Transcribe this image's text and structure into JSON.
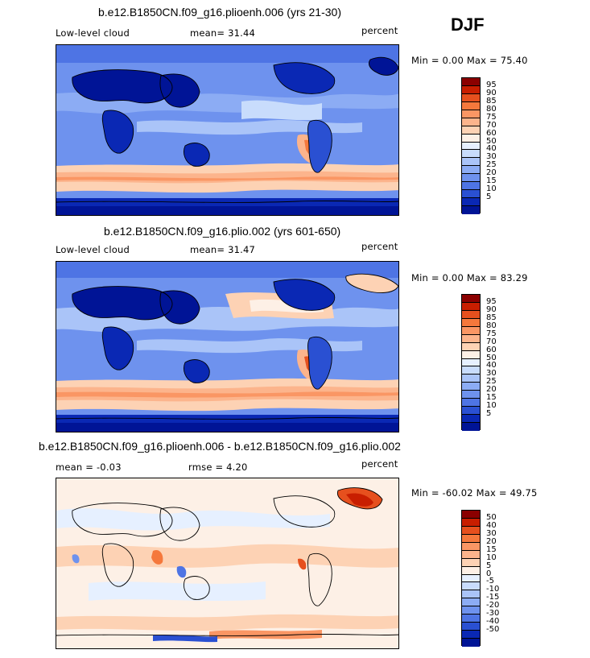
{
  "season": "DJF",
  "panels": [
    {
      "title": "b.e12.B1850CN.f09_g16.plioenh.006 (yrs 21-30)",
      "left_label": "Low-level cloud",
      "stat_text": "mean=  31.44",
      "units": "percent",
      "minmax": "Min =   0.00 Max =  75.40",
      "colorbar": {
        "colors": [
          "#8b0000",
          "#c81e00",
          "#e6501e",
          "#f5783c",
          "#fa9664",
          "#fcb48c",
          "#fdd2b4",
          "#fdf0e6",
          "#e6f0ff",
          "#c8dcfc",
          "#aac4f8",
          "#8cacf4",
          "#6e92ee",
          "#4e74e4",
          "#2a50d2",
          "#0a28b4",
          "#001496"
        ],
        "labels": [
          "95",
          "90",
          "85",
          "80",
          "75",
          "70",
          "60",
          "50",
          "40",
          "30",
          "25",
          "20",
          "15",
          "10",
          "5"
        ]
      }
    },
    {
      "title": "b.e12.B1850CN.f09_g16.plio.002 (yrs 601-650)",
      "left_label": "Low-level cloud",
      "stat_text": "mean=  31.47",
      "units": "percent",
      "minmax": "Min =   0.00 Max =  83.29",
      "colorbar": {
        "colors": [
          "#8b0000",
          "#c81e00",
          "#e6501e",
          "#f5783c",
          "#fa9664",
          "#fcb48c",
          "#fdd2b4",
          "#fdf0e6",
          "#e6f0ff",
          "#c8dcfc",
          "#aac4f8",
          "#8cacf4",
          "#6e92ee",
          "#4e74e4",
          "#2a50d2",
          "#0a28b4",
          "#001496"
        ],
        "labels": [
          "95",
          "90",
          "85",
          "80",
          "75",
          "70",
          "60",
          "50",
          "40",
          "30",
          "25",
          "20",
          "15",
          "10",
          "5"
        ]
      }
    },
    {
      "title": "b.e12.B1850CN.f09_g16.plioenh.006 - b.e12.B1850CN.f09_g16.plio.002",
      "left_label": "mean =  -0.03",
      "stat_text": "rmse =   4.20",
      "units": "percent",
      "minmax": "Min = -60.02 Max =  49.75",
      "colorbar": {
        "colors": [
          "#8b0000",
          "#c81e00",
          "#e6501e",
          "#f5783c",
          "#fa9664",
          "#fcb48c",
          "#fdd2b4",
          "#fdf0e6",
          "#e6f0ff",
          "#c8dcfc",
          "#aac4f8",
          "#8cacf4",
          "#6e92ee",
          "#4e74e4",
          "#2a50d2",
          "#0a28b4",
          "#001496"
        ],
        "labels": [
          "50",
          "40",
          "30",
          "20",
          "15",
          "10",
          "5",
          "0",
          "-5",
          "-10",
          "-15",
          "-20",
          "-30",
          "-40",
          "-50"
        ]
      }
    }
  ]
}
